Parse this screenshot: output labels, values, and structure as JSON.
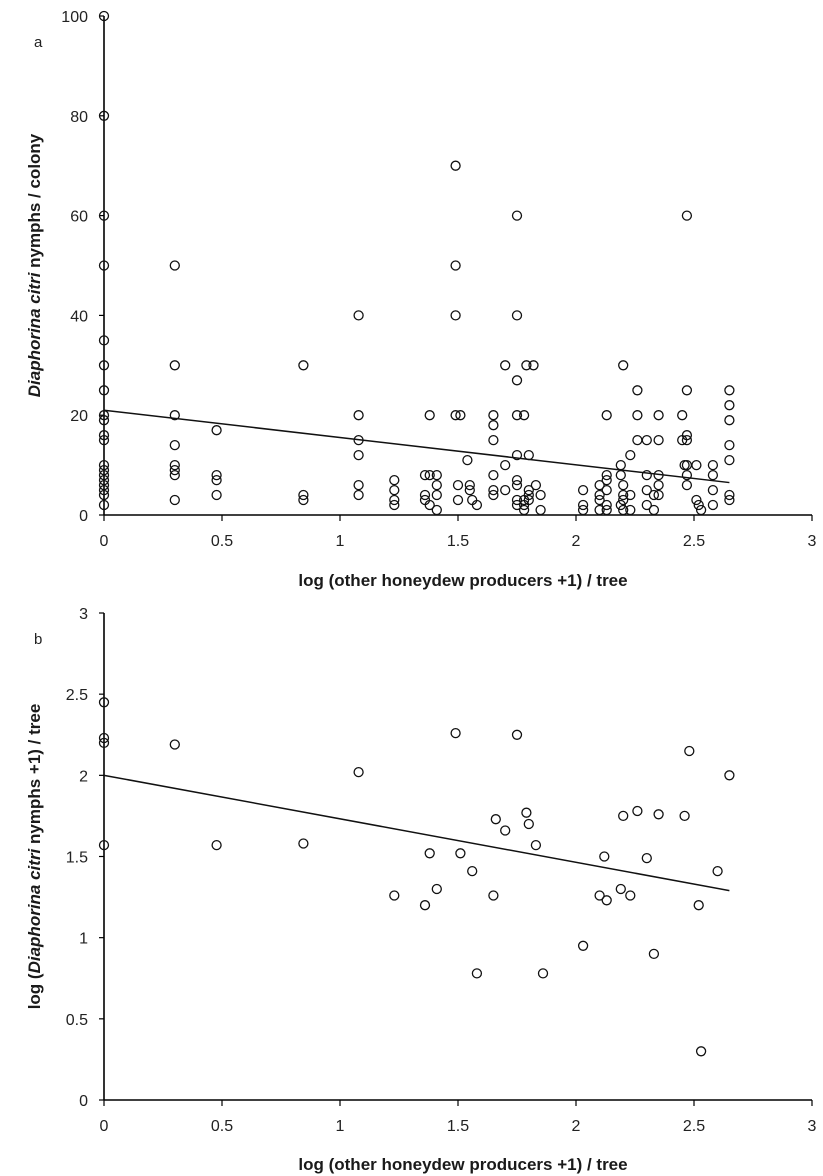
{
  "chart_data": [
    {
      "panel": "a",
      "type": "scatter",
      "xlabel": "log (other honeydew producers +1) / tree",
      "ylabel_parts": [
        {
          "text": "Diaphorina citri",
          "italic": true
        },
        {
          "text": " nymphs / colony",
          "italic": false
        }
      ],
      "xlim": [
        0,
        3
      ],
      "ylim": [
        0,
        100
      ],
      "xticks": [
        {
          "v": 0,
          "t": "0"
        },
        {
          "v": 0.5,
          "t": "0.5"
        },
        {
          "v": 1,
          "t": "1"
        },
        {
          "v": 1.5,
          "t": "1.5"
        },
        {
          "v": 2,
          "t": "2"
        },
        {
          "v": 2.5,
          "t": "2.5"
        },
        {
          "v": 3,
          "t": "3"
        }
      ],
      "yticks": [
        {
          "v": 0,
          "t": "0"
        },
        {
          "v": 20,
          "t": "20"
        },
        {
          "v": 40,
          "t": "40"
        },
        {
          "v": 60,
          "t": "60"
        },
        {
          "v": 80,
          "t": "80"
        },
        {
          "v": 100,
          "t": "100"
        }
      ],
      "trendline": {
        "x": [
          0,
          2.65
        ],
        "y": [
          21,
          6.5
        ]
      },
      "points": [
        [
          0,
          100
        ],
        [
          0,
          80
        ],
        [
          0,
          60
        ],
        [
          0,
          50
        ],
        [
          0,
          35
        ],
        [
          0,
          30
        ],
        [
          0,
          25
        ],
        [
          0,
          20
        ],
        [
          0,
          19
        ],
        [
          0,
          16
        ],
        [
          0,
          15
        ],
        [
          0,
          10
        ],
        [
          0,
          9
        ],
        [
          0,
          8
        ],
        [
          0,
          7
        ],
        [
          0,
          6
        ],
        [
          0,
          5
        ],
        [
          0,
          4
        ],
        [
          0,
          2
        ],
        [
          0.3,
          50
        ],
        [
          0.3,
          30
        ],
        [
          0.3,
          20
        ],
        [
          0.3,
          14
        ],
        [
          0.3,
          10
        ],
        [
          0.3,
          9
        ],
        [
          0.3,
          8
        ],
        [
          0.3,
          3
        ],
        [
          0.477,
          17
        ],
        [
          0.477,
          8
        ],
        [
          0.477,
          7
        ],
        [
          0.477,
          4
        ],
        [
          0.845,
          30
        ],
        [
          0.845,
          4
        ],
        [
          0.845,
          3
        ],
        [
          1.079,
          40
        ],
        [
          1.079,
          20
        ],
        [
          1.079,
          15
        ],
        [
          1.079,
          12
        ],
        [
          1.079,
          6
        ],
        [
          1.079,
          4
        ],
        [
          1.23,
          7
        ],
        [
          1.23,
          5
        ],
        [
          1.23,
          3
        ],
        [
          1.23,
          2
        ],
        [
          1.36,
          8
        ],
        [
          1.36,
          4
        ],
        [
          1.36,
          3
        ],
        [
          1.38,
          20
        ],
        [
          1.38,
          8
        ],
        [
          1.38,
          2
        ],
        [
          1.41,
          8
        ],
        [
          1.41,
          6
        ],
        [
          1.41,
          4
        ],
        [
          1.41,
          1
        ],
        [
          1.49,
          70
        ],
        [
          1.49,
          50
        ],
        [
          1.49,
          40
        ],
        [
          1.49,
          20
        ],
        [
          1.51,
          20
        ],
        [
          1.5,
          6
        ],
        [
          1.5,
          3
        ],
        [
          1.54,
          11
        ],
        [
          1.55,
          6
        ],
        [
          1.55,
          5
        ],
        [
          1.56,
          3
        ],
        [
          1.58,
          2
        ],
        [
          1.65,
          20
        ],
        [
          1.65,
          18
        ],
        [
          1.65,
          15
        ],
        [
          1.65,
          8
        ],
        [
          1.65,
          5
        ],
        [
          1.65,
          4
        ],
        [
          1.7,
          30
        ],
        [
          1.7,
          10
        ],
        [
          1.7,
          5
        ],
        [
          1.75,
          60
        ],
        [
          1.75,
          40
        ],
        [
          1.75,
          27
        ],
        [
          1.75,
          20
        ],
        [
          1.75,
          12
        ],
        [
          1.75,
          7
        ],
        [
          1.75,
          6
        ],
        [
          1.75,
          3
        ],
        [
          1.75,
          2
        ],
        [
          1.78,
          20
        ],
        [
          1.78,
          3
        ],
        [
          1.78,
          2
        ],
        [
          1.78,
          1
        ],
        [
          1.79,
          30
        ],
        [
          1.8,
          12
        ],
        [
          1.8,
          5
        ],
        [
          1.8,
          4
        ],
        [
          1.8,
          3
        ],
        [
          1.82,
          30
        ],
        [
          1.83,
          6
        ],
        [
          1.85,
          4
        ],
        [
          1.85,
          1
        ],
        [
          2.03,
          5
        ],
        [
          2.03,
          2
        ],
        [
          2.03,
          1
        ],
        [
          2.1,
          6
        ],
        [
          2.1,
          4
        ],
        [
          2.1,
          3
        ],
        [
          2.1,
          1
        ],
        [
          2.13,
          20
        ],
        [
          2.13,
          8
        ],
        [
          2.13,
          7
        ],
        [
          2.13,
          5
        ],
        [
          2.13,
          2
        ],
        [
          2.13,
          1
        ],
        [
          2.19,
          10
        ],
        [
          2.19,
          8
        ],
        [
          2.19,
          2
        ],
        [
          2.2,
          30
        ],
        [
          2.2,
          6
        ],
        [
          2.2,
          4
        ],
        [
          2.2,
          3
        ],
        [
          2.2,
          1
        ],
        [
          2.23,
          12
        ],
        [
          2.23,
          4
        ],
        [
          2.23,
          1
        ],
        [
          2.26,
          25
        ],
        [
          2.26,
          20
        ],
        [
          2.26,
          15
        ],
        [
          2.3,
          15
        ],
        [
          2.3,
          8
        ],
        [
          2.3,
          5
        ],
        [
          2.3,
          2
        ],
        [
          2.33,
          4
        ],
        [
          2.33,
          1
        ],
        [
          2.35,
          20
        ],
        [
          2.35,
          15
        ],
        [
          2.35,
          8
        ],
        [
          2.35,
          6
        ],
        [
          2.35,
          4
        ],
        [
          2.45,
          20
        ],
        [
          2.45,
          15
        ],
        [
          2.46,
          10
        ],
        [
          2.47,
          60
        ],
        [
          2.47,
          25
        ],
        [
          2.47,
          16
        ],
        [
          2.47,
          15
        ],
        [
          2.47,
          10
        ],
        [
          2.47,
          8
        ],
        [
          2.47,
          6
        ],
        [
          2.51,
          10
        ],
        [
          2.51,
          3
        ],
        [
          2.52,
          2
        ],
        [
          2.53,
          1
        ],
        [
          2.58,
          10
        ],
        [
          2.58,
          8
        ],
        [
          2.58,
          5
        ],
        [
          2.58,
          2
        ],
        [
          2.65,
          25
        ],
        [
          2.65,
          22
        ],
        [
          2.65,
          19
        ],
        [
          2.65,
          14
        ],
        [
          2.65,
          11
        ],
        [
          2.65,
          4
        ],
        [
          2.65,
          3
        ]
      ]
    },
    {
      "panel": "b",
      "type": "scatter",
      "xlabel": "log (other honeydew producers +1) / tree",
      "ylabel_parts": [
        {
          "text": "log (",
          "italic": false
        },
        {
          "text": "Diaphorina citri",
          "italic": true
        },
        {
          "text": " nymphs +1) / tree",
          "italic": false
        }
      ],
      "xlim": [
        0,
        3
      ],
      "ylim": [
        0,
        3
      ],
      "xticks": [
        {
          "v": 0,
          "t": "0"
        },
        {
          "v": 0.5,
          "t": "0.5"
        },
        {
          "v": 1,
          "t": "1"
        },
        {
          "v": 1.5,
          "t": "1.5"
        },
        {
          "v": 2,
          "t": "2"
        },
        {
          "v": 2.5,
          "t": "2.5"
        },
        {
          "v": 3,
          "t": "3"
        }
      ],
      "yticks": [
        {
          "v": 0,
          "t": "0"
        },
        {
          "v": 0.5,
          "t": "0.5"
        },
        {
          "v": 1,
          "t": "1"
        },
        {
          "v": 1.5,
          "t": "1.5"
        },
        {
          "v": 2,
          "t": "2"
        },
        {
          "v": 2.5,
          "t": "2.5"
        },
        {
          "v": 3,
          "t": "3"
        }
      ],
      "trendline": {
        "x": [
          0,
          2.65
        ],
        "y": [
          2.0,
          1.29
        ]
      },
      "points": [
        [
          0,
          2.45
        ],
        [
          0,
          2.23
        ],
        [
          0,
          2.2
        ],
        [
          0,
          1.57
        ],
        [
          0.3,
          2.19
        ],
        [
          0.477,
          1.57
        ],
        [
          0.845,
          1.58
        ],
        [
          1.079,
          2.02
        ],
        [
          1.23,
          1.26
        ],
        [
          1.36,
          1.2
        ],
        [
          1.38,
          1.52
        ],
        [
          1.41,
          1.3
        ],
        [
          1.49,
          2.26
        ],
        [
          1.51,
          1.52
        ],
        [
          1.56,
          1.41
        ],
        [
          1.58,
          0.78
        ],
        [
          1.65,
          1.26
        ],
        [
          1.66,
          1.73
        ],
        [
          1.7,
          1.66
        ],
        [
          1.75,
          2.25
        ],
        [
          1.79,
          1.77
        ],
        [
          1.8,
          1.7
        ],
        [
          1.83,
          1.57
        ],
        [
          1.86,
          0.78
        ],
        [
          2.03,
          0.95
        ],
        [
          2.1,
          1.26
        ],
        [
          2.12,
          1.5
        ],
        [
          2.13,
          1.23
        ],
        [
          2.19,
          1.3
        ],
        [
          2.2,
          1.75
        ],
        [
          2.23,
          1.26
        ],
        [
          2.26,
          1.78
        ],
        [
          2.3,
          1.49
        ],
        [
          2.33,
          0.9
        ],
        [
          2.35,
          1.76
        ],
        [
          2.46,
          1.75
        ],
        [
          2.48,
          2.15
        ],
        [
          2.52,
          1.2
        ],
        [
          2.53,
          0.3
        ],
        [
          2.6,
          1.41
        ],
        [
          2.65,
          2.0
        ]
      ]
    }
  ]
}
